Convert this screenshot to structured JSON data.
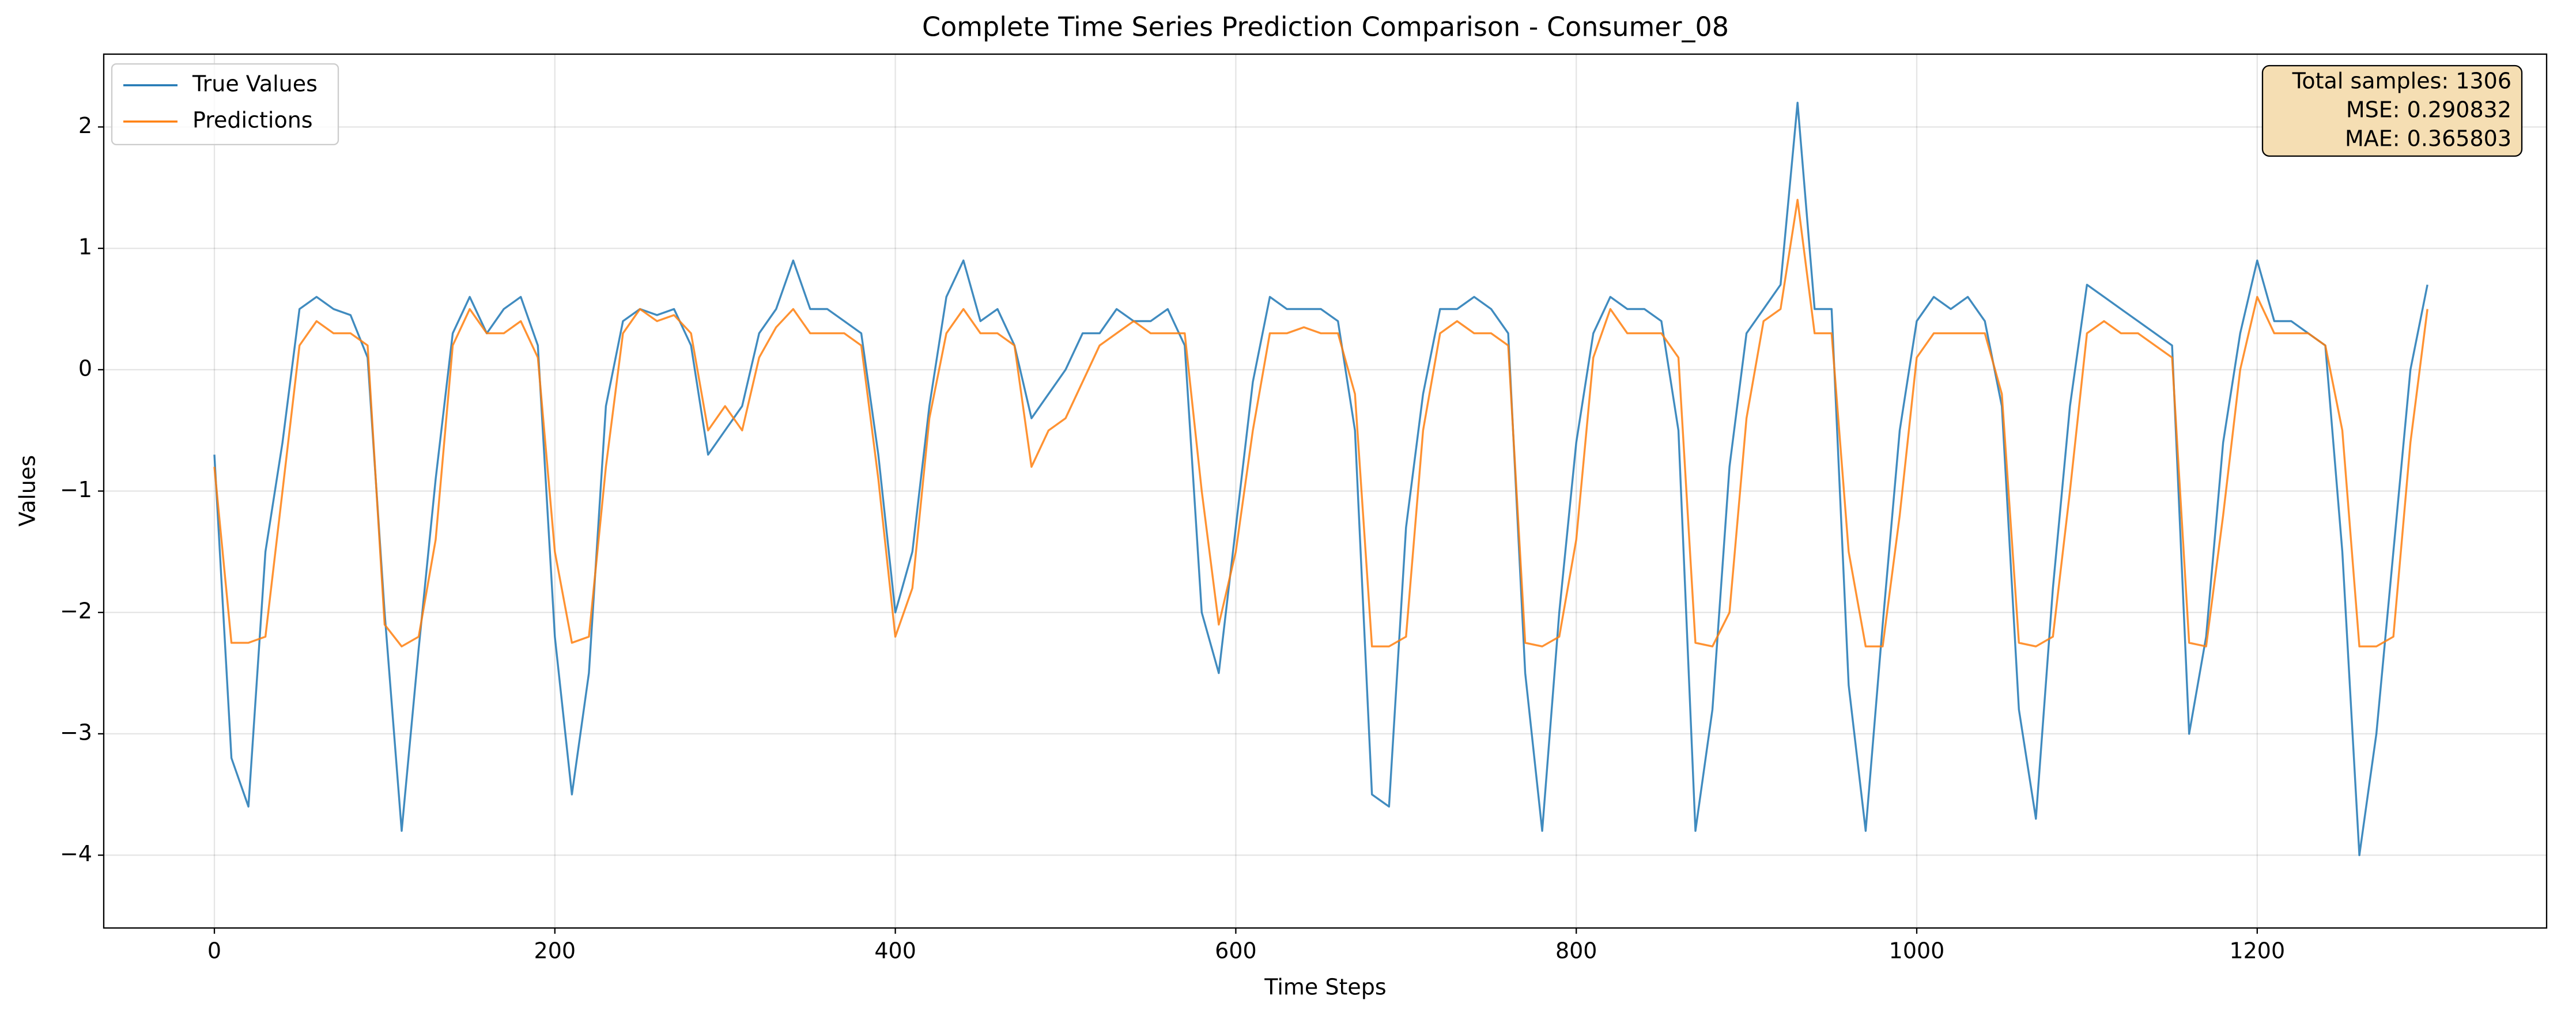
{
  "chart_data": {
    "type": "line",
    "title": "Complete Time Series Prediction Comparison - Consumer_08",
    "x_label": "Time Steps",
    "y_label": "Values",
    "x": [
      0,
      10,
      20,
      30,
      40,
      50,
      60,
      70,
      80,
      90,
      100,
      110,
      120,
      130,
      140,
      150,
      160,
      170,
      180,
      190,
      200,
      210,
      220,
      230,
      240,
      250,
      260,
      270,
      280,
      290,
      300,
      310,
      320,
      330,
      340,
      350,
      360,
      370,
      380,
      390,
      400,
      410,
      420,
      430,
      440,
      450,
      460,
      470,
      480,
      490,
      500,
      510,
      520,
      530,
      540,
      550,
      560,
      570,
      580,
      590,
      600,
      610,
      620,
      630,
      640,
      650,
      660,
      670,
      680,
      690,
      700,
      710,
      720,
      730,
      740,
      750,
      760,
      770,
      780,
      790,
      800,
      810,
      820,
      830,
      840,
      850,
      860,
      870,
      880,
      890,
      900,
      910,
      920,
      930,
      940,
      950,
      960,
      970,
      980,
      990,
      1000,
      1010,
      1020,
      1030,
      1040,
      1050,
      1060,
      1070,
      1080,
      1090,
      1100,
      1110,
      1120,
      1130,
      1140,
      1150,
      1160,
      1170,
      1180,
      1190,
      1200,
      1210,
      1220,
      1230,
      1240,
      1250,
      1260,
      1270,
      1280,
      1290,
      1300
    ],
    "series": [
      {
        "name": "True Values",
        "color": "#1f77b4",
        "values": [
          -0.7,
          -3.2,
          -3.6,
          -1.5,
          -0.6,
          0.5,
          0.6,
          0.5,
          0.45,
          0.1,
          -2.0,
          -3.8,
          -2.3,
          -0.9,
          0.3,
          0.6,
          0.3,
          0.5,
          0.6,
          0.2,
          -2.2,
          -3.5,
          -2.5,
          -0.3,
          0.4,
          0.5,
          0.45,
          0.5,
          0.2,
          -0.7,
          -0.5,
          -0.3,
          0.3,
          0.5,
          0.9,
          0.5,
          0.5,
          0.4,
          0.3,
          -0.7,
          -2.0,
          -1.5,
          -0.3,
          0.6,
          0.9,
          0.4,
          0.5,
          0.2,
          -0.4,
          -0.2,
          0.0,
          0.3,
          0.3,
          0.5,
          0.4,
          0.4,
          0.5,
          0.2,
          -2.0,
          -2.5,
          -1.3,
          -0.1,
          0.6,
          0.5,
          0.5,
          0.5,
          0.4,
          -0.5,
          -3.5,
          -3.6,
          -1.3,
          -0.2,
          0.5,
          0.5,
          0.6,
          0.5,
          0.3,
          -2.5,
          -3.8,
          -2.0,
          -0.6,
          0.3,
          0.6,
          0.5,
          0.5,
          0.4,
          -0.5,
          -3.8,
          -2.8,
          -0.8,
          0.3,
          0.5,
          0.7,
          2.2,
          0.5,
          0.5,
          -2.6,
          -3.8,
          -2.1,
          -0.5,
          0.4,
          0.6,
          0.5,
          0.6,
          0.4,
          -0.3,
          -2.8,
          -3.7,
          -1.8,
          -0.3,
          0.7,
          0.6,
          0.5,
          0.4,
          0.3,
          0.2,
          -3.0,
          -2.2,
          -0.6,
          0.3,
          0.9,
          0.4,
          0.4,
          0.3,
          0.2,
          -1.5,
          -4.0,
          -3.0,
          -1.5,
          0.0,
          0.7
        ]
      },
      {
        "name": "Predictions",
        "color": "#ff7f0e",
        "values": [
          -0.8,
          -2.25,
          -2.25,
          -2.2,
          -1.0,
          0.2,
          0.4,
          0.3,
          0.3,
          0.2,
          -2.1,
          -2.28,
          -2.2,
          -1.4,
          0.2,
          0.5,
          0.3,
          0.3,
          0.4,
          0.1,
          -1.5,
          -2.25,
          -2.2,
          -0.8,
          0.3,
          0.5,
          0.4,
          0.45,
          0.3,
          -0.5,
          -0.3,
          -0.5,
          0.1,
          0.35,
          0.5,
          0.3,
          0.3,
          0.3,
          0.2,
          -0.9,
          -2.2,
          -1.8,
          -0.4,
          0.3,
          0.5,
          0.3,
          0.3,
          0.2,
          -0.8,
          -0.5,
          -0.4,
          -0.1,
          0.2,
          0.3,
          0.4,
          0.3,
          0.3,
          0.3,
          -1.0,
          -2.1,
          -1.5,
          -0.5,
          0.3,
          0.3,
          0.35,
          0.3,
          0.3,
          -0.2,
          -2.28,
          -2.28,
          -2.2,
          -0.5,
          0.3,
          0.4,
          0.3,
          0.3,
          0.2,
          -2.25,
          -2.28,
          -2.2,
          -1.4,
          0.1,
          0.5,
          0.3,
          0.3,
          0.3,
          0.1,
          -2.25,
          -2.28,
          -2.0,
          -0.4,
          0.4,
          0.5,
          1.4,
          0.3,
          0.3,
          -1.5,
          -2.28,
          -2.28,
          -1.2,
          0.1,
          0.3,
          0.3,
          0.3,
          0.3,
          -0.2,
          -2.25,
          -2.28,
          -2.2,
          -1.0,
          0.3,
          0.4,
          0.3,
          0.3,
          0.2,
          0.1,
          -2.25,
          -2.28,
          -1.2,
          0.0,
          0.6,
          0.3,
          0.3,
          0.3,
          0.2,
          -0.5,
          -2.28,
          -2.28,
          -2.2,
          -0.6,
          0.5
        ]
      }
    ],
    "xlim": [
      -65,
      1370
    ],
    "ylim": [
      -4.6,
      2.6
    ],
    "xticks": [
      0,
      200,
      400,
      600,
      800,
      1000,
      1200
    ],
    "yticks": [
      {
        "value": -4,
        "label": "−4"
      },
      {
        "value": -3,
        "label": "−3"
      },
      {
        "value": -2,
        "label": "−2"
      },
      {
        "value": -1,
        "label": "−1"
      },
      0,
      1,
      2
    ],
    "grid": true,
    "legend": "upper left",
    "annotation": [
      "Total samples: 1306",
      "MSE: 0.290832",
      "MAE: 0.365803"
    ]
  }
}
